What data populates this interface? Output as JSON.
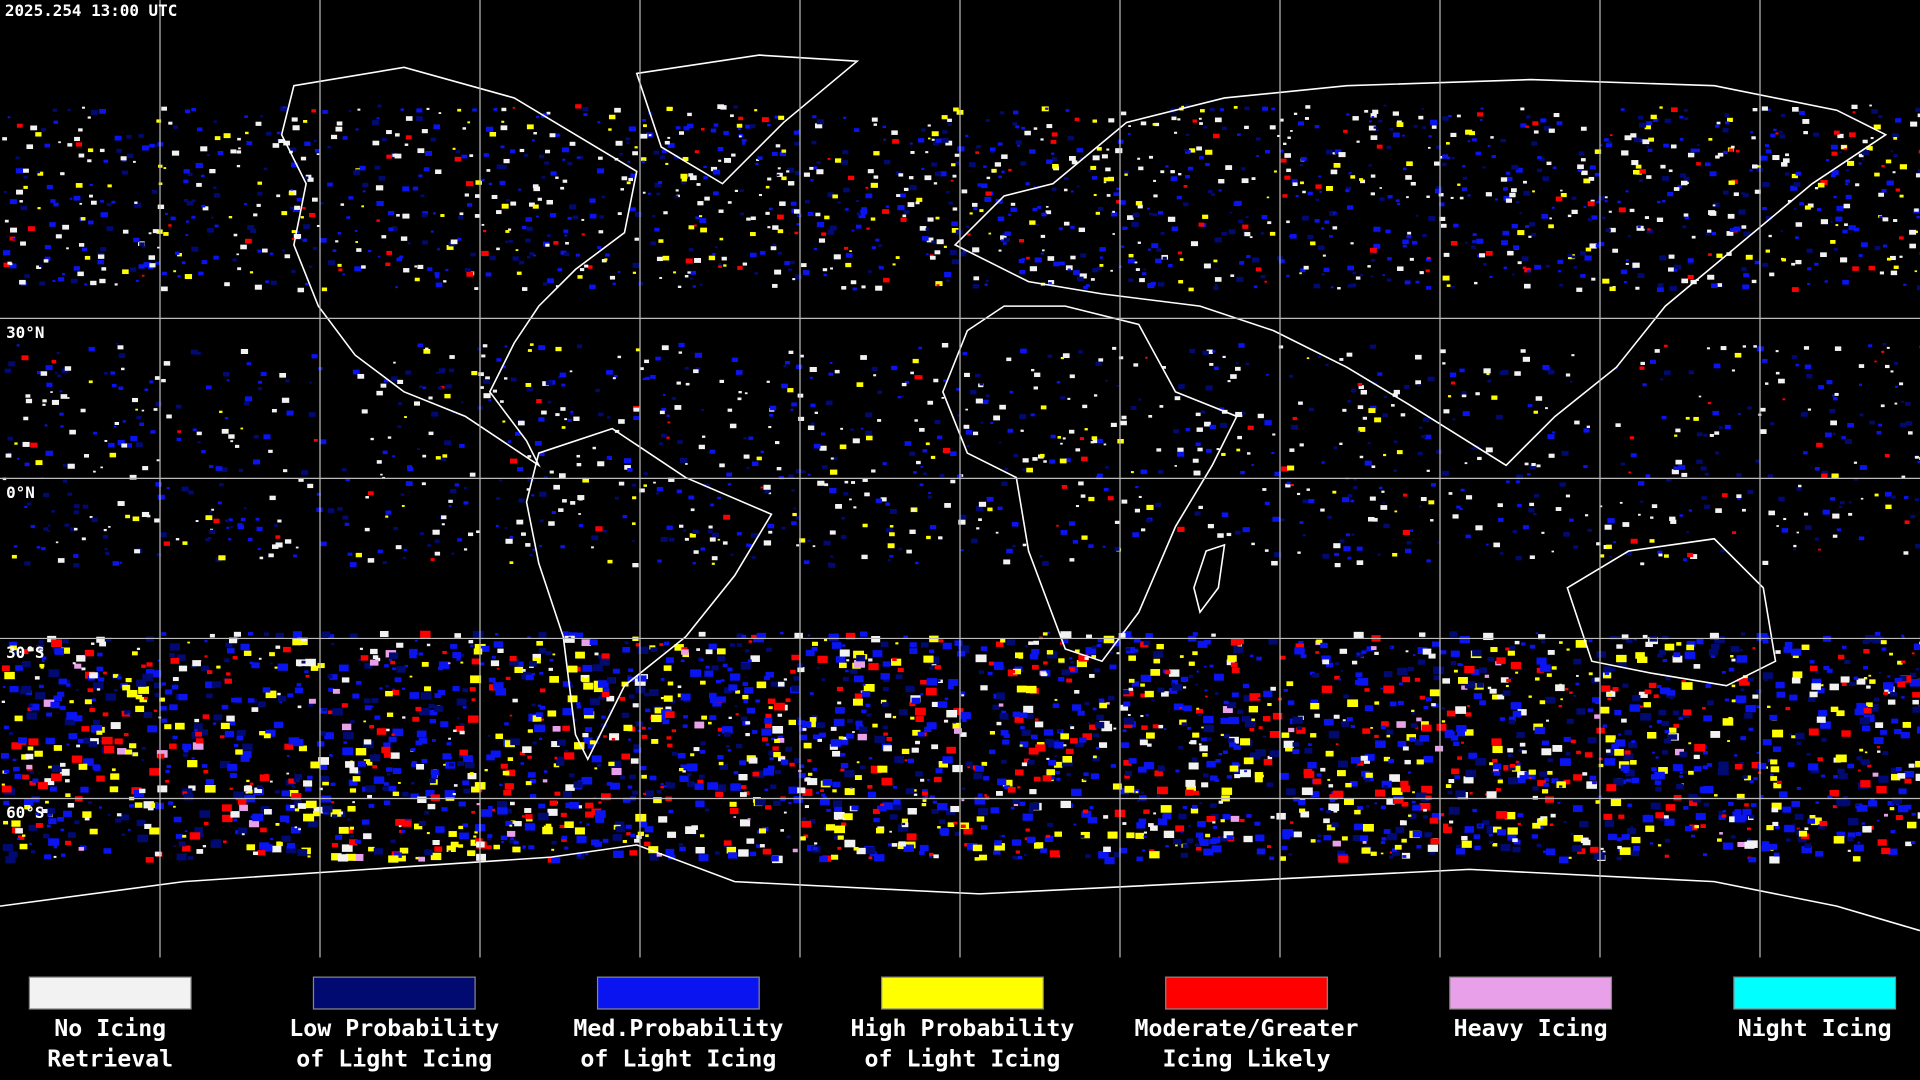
{
  "header": {
    "timestamp": "2025.254 13:00 UTC"
  },
  "map": {
    "latitude_labels": [
      "30°N",
      "0°N",
      "30°S",
      "60°S"
    ]
  },
  "legend": [
    {
      "label_lines": [
        "No Icing",
        "Retrieval"
      ],
      "color": "#f2f2f2"
    },
    {
      "label_lines": [
        "Low Probability",
        "of Light Icing"
      ],
      "color": "#000a70"
    },
    {
      "label_lines": [
        "Med.Probability",
        "of Light Icing"
      ],
      "color": "#0a14f0"
    },
    {
      "label_lines": [
        "High Probability",
        "of Light Icing"
      ],
      "color": "#ffff00"
    },
    {
      "label_lines": [
        "Moderate/Greater",
        "Icing Likely"
      ],
      "color": "#ff0000"
    },
    {
      "label_lines": [
        "Heavy Icing"
      ],
      "color": "#e8a0e8"
    },
    {
      "label_lines": [
        "Night Icing"
      ],
      "color": "#00ffff"
    }
  ]
}
